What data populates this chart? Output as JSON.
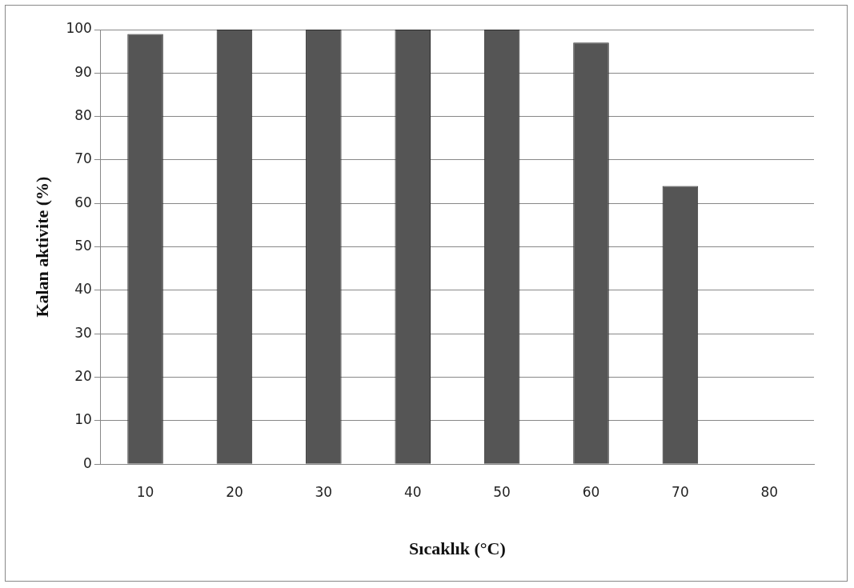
{
  "chart_data": {
    "type": "bar",
    "xlabel": "Sıcaklık (°C)",
    "ylabel": "Kalan aktivite (%)",
    "categories": [
      "10",
      "20",
      "30",
      "40",
      "50",
      "60",
      "70",
      "80"
    ],
    "values": [
      99,
      100,
      100,
      100,
      100,
      97,
      64,
      0
    ],
    "color": "#555555",
    "ylim": [
      0,
      100
    ],
    "yticks": [
      0,
      10,
      20,
      30,
      40,
      50,
      60,
      70,
      80,
      90,
      100
    ],
    "grid": "y",
    "legend": false
  }
}
